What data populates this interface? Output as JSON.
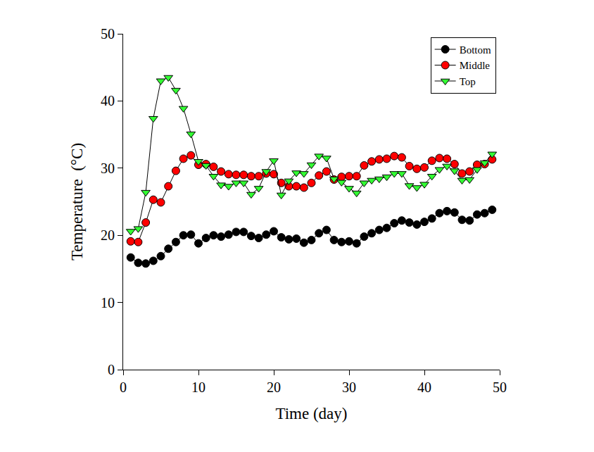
{
  "chart_data": {
    "type": "line",
    "x_label": "Time (day)",
    "y_label": "Temperature  (°C)",
    "x": [
      1,
      2,
      3,
      4,
      5,
      6,
      7,
      8,
      9,
      10,
      11,
      12,
      13,
      14,
      15,
      16,
      17,
      18,
      19,
      20,
      21,
      22,
      23,
      24,
      25,
      26,
      27,
      28,
      29,
      30,
      31,
      32,
      33,
      34,
      35,
      36,
      37,
      38,
      39,
      40,
      41,
      42,
      43,
      44,
      45,
      46,
      47,
      48,
      49
    ],
    "series": [
      {
        "name": "Bottom",
        "color": "#000000",
        "marker": "circle",
        "values": [
          16.7,
          15.9,
          15.8,
          16.2,
          16.9,
          18.0,
          19.0,
          20.0,
          20.1,
          18.8,
          19.6,
          20.0,
          19.8,
          20.1,
          20.5,
          20.5,
          19.9,
          19.6,
          20.1,
          20.6,
          19.7,
          19.4,
          19.5,
          18.9,
          19.3,
          20.3,
          20.8,
          19.3,
          19.0,
          19.1,
          18.8,
          19.8,
          20.3,
          20.8,
          21.1,
          21.8,
          22.2,
          21.9,
          21.6,
          22.0,
          22.5,
          23.3,
          23.6,
          23.4,
          22.3,
          22.2,
          23.1,
          23.3,
          23.8
        ]
      },
      {
        "name": "Middle",
        "color": "#ff0000",
        "marker": "circle",
        "values": [
          19.1,
          19.0,
          21.9,
          25.3,
          24.9,
          27.3,
          29.6,
          31.4,
          31.9,
          30.5,
          30.6,
          30.2,
          29.5,
          29.1,
          29.0,
          29.0,
          28.8,
          28.8,
          29.2,
          29.1,
          27.8,
          27.3,
          27.3,
          27.1,
          27.8,
          28.9,
          29.5,
          28.3,
          28.7,
          28.8,
          28.8,
          30.4,
          31.0,
          31.3,
          31.4,
          31.8,
          31.6,
          30.3,
          29.9,
          30.1,
          31.1,
          31.5,
          31.4,
          30.6,
          29.2,
          29.5,
          30.5,
          30.6,
          31.3
        ]
      },
      {
        "name": "Top",
        "color": "#33ff33",
        "marker": "triangle-down",
        "values": [
          20.6,
          21.0,
          26.4,
          37.4,
          43.0,
          43.5,
          41.6,
          38.9,
          35.1,
          31.0,
          30.4,
          28.8,
          27.5,
          27.3,
          27.8,
          27.8,
          26.1,
          27.0,
          29.5,
          31.1,
          26.0,
          28.1,
          29.3,
          29.2,
          30.5,
          31.8,
          31.5,
          28.4,
          27.9,
          27.0,
          26.3,
          27.8,
          28.2,
          28.4,
          28.7,
          29.2,
          29.2,
          27.4,
          27.1,
          27.6,
          28.8,
          29.8,
          30.3,
          29.6,
          28.2,
          28.3,
          29.8,
          30.8,
          32.1
        ]
      }
    ],
    "xlim": [
      0,
      50
    ],
    "xticks": [
      0,
      10,
      20,
      30,
      40,
      50
    ],
    "ylim": [
      0,
      50
    ],
    "yticks": [
      0,
      10,
      20,
      30,
      40,
      50
    ],
    "grid": false,
    "legend": "top right"
  }
}
